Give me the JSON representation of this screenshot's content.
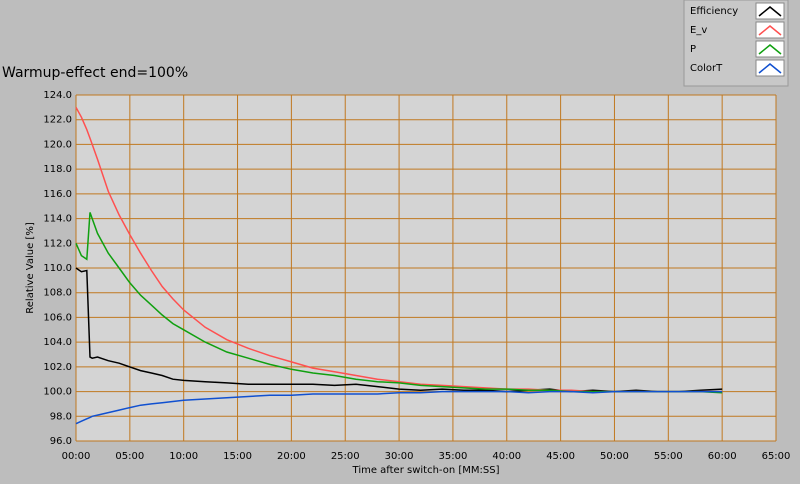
{
  "chart_data": {
    "type": "line",
    "title": "Warmup-effect end=100%",
    "x_label": "Time after switch-on [MM:SS]",
    "y_label": "Relative Value [%]",
    "x": [
      0,
      0.5,
      1,
      1.3,
      1.5,
      2,
      3,
      4,
      5,
      6,
      7,
      8,
      9,
      10,
      12,
      14,
      16,
      18,
      20,
      22,
      24,
      26,
      28,
      30,
      32,
      34,
      36,
      38,
      40,
      42,
      44,
      46,
      48,
      50,
      52,
      54,
      56,
      58,
      60
    ],
    "series": [
      {
        "name": "Efficiency",
        "color": "#000000",
        "values": [
          110,
          109.7,
          109.8,
          102.8,
          102.7,
          102.8,
          102.5,
          102.3,
          102.0,
          101.7,
          101.5,
          101.3,
          101.0,
          100.9,
          100.8,
          100.7,
          100.6,
          100.6,
          100.6,
          100.6,
          100.5,
          100.6,
          100.4,
          100.2,
          100.1,
          100.2,
          100.1,
          100.1,
          100.0,
          100.1,
          100.2,
          100.0,
          100.1,
          100.0,
          100.1,
          100.0,
          100.0,
          100.1,
          100.2
        ]
      },
      {
        "name": "E_v",
        "color": "#ff5050",
        "values": [
          123,
          122.2,
          121.2,
          120.5,
          120,
          118.8,
          116.2,
          114.3,
          112.7,
          111.2,
          109.8,
          108.5,
          107.5,
          106.6,
          105.2,
          104.2,
          103.5,
          102.9,
          102.4,
          101.9,
          101.6,
          101.3,
          101.0,
          100.8,
          100.6,
          100.5,
          100.4,
          100.3,
          100.2,
          100.2,
          100.1,
          100.1,
          100.0,
          100.0,
          100.0,
          100.0,
          100.0,
          100.0,
          100.0
        ]
      },
      {
        "name": "P",
        "color": "#10a010",
        "values": [
          112,
          111,
          110.7,
          114.5,
          114,
          112.8,
          111.2,
          110,
          108.8,
          107.8,
          107,
          106.2,
          105.5,
          105,
          104,
          103.2,
          102.7,
          102.2,
          101.8,
          101.5,
          101.3,
          101.0,
          100.8,
          100.7,
          100.5,
          100.4,
          100.3,
          100.2,
          100.2,
          100.1,
          100.1,
          100.0,
          100.0,
          100.0,
          100.0,
          100.0,
          100.0,
          100.0,
          99.9
        ]
      },
      {
        "name": "ColorT",
        "color": "#1050d0",
        "values": [
          97.4,
          97.6,
          97.8,
          97.9,
          98.0,
          98.1,
          98.3,
          98.5,
          98.7,
          98.9,
          99.0,
          99.1,
          99.2,
          99.3,
          99.4,
          99.5,
          99.6,
          99.7,
          99.7,
          99.8,
          99.8,
          99.8,
          99.8,
          99.9,
          99.9,
          100.0,
          100.0,
          100.0,
          100.0,
          99.9,
          100.0,
          100.0,
          99.9,
          100.0,
          100.0,
          100.0,
          100.0,
          100.0,
          100.0
        ]
      }
    ],
    "xlim": [
      0,
      65
    ],
    "xticks": [
      {
        "value": 0,
        "label": "00:00"
      },
      {
        "value": 5,
        "label": "05:00"
      },
      {
        "value": 10,
        "label": "10:00"
      },
      {
        "value": 15,
        "label": "15:00"
      },
      {
        "value": 20,
        "label": "20:00"
      },
      {
        "value": 25,
        "label": "25:00"
      },
      {
        "value": 30,
        "label": "30:00"
      },
      {
        "value": 35,
        "label": "35:00"
      },
      {
        "value": 40,
        "label": "40:00"
      },
      {
        "value": 45,
        "label": "45:00"
      },
      {
        "value": 50,
        "label": "50:00"
      },
      {
        "value": 55,
        "label": "55:00"
      },
      {
        "value": 60,
        "label": "60:00"
      },
      {
        "value": 65,
        "label": "65:00"
      }
    ],
    "ylim": [
      96,
      124
    ],
    "yticks": [
      {
        "value": 96,
        "label": "96.0"
      },
      {
        "value": 98,
        "label": "98.0"
      },
      {
        "value": 100,
        "label": "100.0"
      },
      {
        "value": 102,
        "label": "102.0"
      },
      {
        "value": 104,
        "label": "104.0"
      },
      {
        "value": 106,
        "label": "106.0"
      },
      {
        "value": 108,
        "label": "108.0"
      },
      {
        "value": 110,
        "label": "110.0"
      },
      {
        "value": 112,
        "label": "112.0"
      },
      {
        "value": 114,
        "label": "114.0"
      },
      {
        "value": 116,
        "label": "116.0"
      },
      {
        "value": 118,
        "label": "118.0"
      },
      {
        "value": 120,
        "label": "120.0"
      },
      {
        "value": 122,
        "label": "122.0"
      },
      {
        "value": 124,
        "label": "124.0"
      }
    ],
    "grid": true
  }
}
